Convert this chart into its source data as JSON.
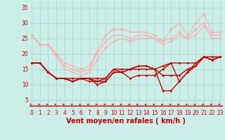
{
  "xlabel": "Vent moyen/en rafales ( km/h )",
  "bg_color": "#cceee8",
  "grid_color": "#aaddcc",
  "x_ticks": [
    0,
    1,
    2,
    3,
    4,
    5,
    6,
    7,
    8,
    9,
    10,
    11,
    12,
    13,
    14,
    15,
    16,
    17,
    18,
    19,
    20,
    21,
    22,
    23
  ],
  "y_ticks": [
    5,
    10,
    15,
    20,
    25,
    30,
    35
  ],
  "ylim": [
    2,
    37
  ],
  "xlim": [
    -0.3,
    23.3
  ],
  "series_light": [
    [
      26,
      23,
      23,
      20,
      17,
      16,
      15,
      16,
      21,
      26,
      28,
      28,
      27,
      27,
      27,
      26,
      24,
      28,
      30,
      26,
      30,
      33,
      27,
      27
    ],
    [
      26,
      23,
      23,
      20,
      16,
      15,
      14,
      15,
      20,
      24,
      26,
      26,
      25,
      26,
      26,
      25,
      24,
      25,
      27,
      25,
      28,
      30,
      26,
      26
    ],
    [
      26,
      23,
      23,
      19,
      15,
      14,
      13,
      14,
      18,
      22,
      24,
      25,
      24,
      25,
      25,
      25,
      23,
      24,
      26,
      25,
      26,
      29,
      25,
      25
    ]
  ],
  "series_dark": [
    [
      17,
      17,
      14,
      12,
      12,
      11,
      12,
      11,
      11,
      11,
      14,
      14,
      15,
      16,
      16,
      15,
      8,
      8,
      11,
      14,
      16,
      19,
      18,
      19
    ],
    [
      17,
      17,
      14,
      12,
      12,
      11,
      12,
      12,
      11,
      12,
      15,
      15,
      15,
      16,
      16,
      15,
      13,
      13,
      13,
      15,
      16,
      19,
      18,
      19
    ],
    [
      17,
      17,
      14,
      12,
      12,
      11,
      12,
      12,
      10,
      11,
      14,
      14,
      15,
      15,
      15,
      15,
      16,
      17,
      17,
      17,
      17,
      19,
      19,
      19
    ],
    [
      17,
      17,
      14,
      12,
      12,
      12,
      12,
      12,
      12,
      12,
      15,
      14,
      12,
      13,
      13,
      13,
      15,
      17,
      11,
      14,
      17,
      19,
      18,
      19
    ]
  ],
  "light_color": "#ffaaaa",
  "dark_color": "#cc0000",
  "arrow_color": "#cc0000",
  "xlabel_color": "#cc0000",
  "xlabel_fontsize": 7,
  "tick_fontsize": 5.5,
  "tick_color": "#cc0000",
  "lw_light": 0.8,
  "lw_dark": 1.0,
  "marker_size": 1.8
}
